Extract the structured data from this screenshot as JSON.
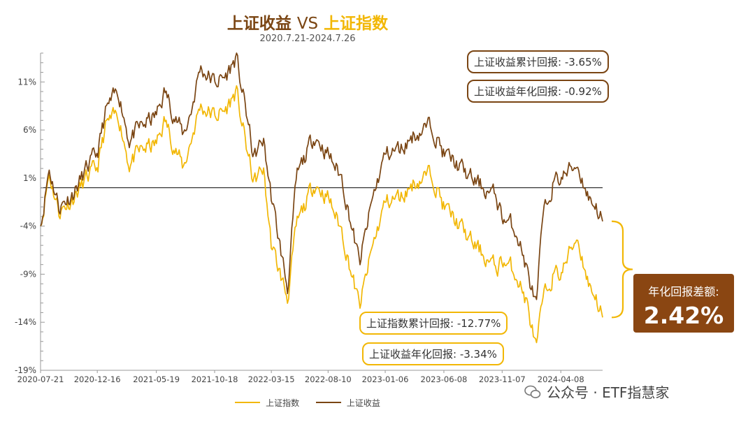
{
  "header": {
    "title_left": "上证收益",
    "title_vs": "VS",
    "title_right": "上证指数",
    "subtitle": "2020.7.21-2024.7.26"
  },
  "annotations": {
    "income_cum": "上证收益累计回报: -3.65%",
    "income_ann_top": "上证收益年化回报: -0.92%",
    "index_cum": "上证指数累计回报: -12.77%",
    "index_ann": "上证收益年化回报: -3.34%",
    "diff_label": "年化回报差额:",
    "diff_value": "2.42%"
  },
  "watermark": "公众号 · ETF指慧家",
  "colors": {
    "index": "#f2b705",
    "income": "#7a4513",
    "accent_box": "#8a4612"
  },
  "chart_data": {
    "type": "line",
    "x_tick_labels": [
      "2020-07-21",
      "2020-12-16",
      "2021-05-19",
      "2021-10-18",
      "2022-03-15",
      "2022-08-10",
      "2023-01-06",
      "2023-06-08",
      "2023-11-07",
      "2024-04-08"
    ],
    "y_tick_labels": [
      "11%",
      "6%",
      "1%",
      "-4%",
      "-9%",
      "-14%",
      "-19%"
    ],
    "ylim": [
      -19,
      14
    ],
    "baseline": 0,
    "grid": false,
    "legend_position": "bottom",
    "x_start": "2020-07-21",
    "x_end": "2024-07-26",
    "series": [
      {
        "name": "上证指数",
        "x": [
          "2020-07-21",
          "2020-08-12",
          "2020-09-08",
          "2020-10-15",
          "2020-11-20",
          "2020-12-16",
          "2021-01-08",
          "2021-02-10",
          "2021-03-09",
          "2021-04-15",
          "2021-05-19",
          "2021-06-10",
          "2021-07-28",
          "2021-08-18",
          "2021-09-10",
          "2021-10-18",
          "2021-11-15",
          "2021-12-13",
          "2022-01-10",
          "2022-01-28",
          "2022-02-22",
          "2022-03-15",
          "2022-04-26",
          "2022-05-20",
          "2022-07-05",
          "2022-08-10",
          "2022-09-15",
          "2022-10-31",
          "2022-12-05",
          "2023-01-06",
          "2023-02-15",
          "2023-03-20",
          "2023-05-09",
          "2023-06-08",
          "2023-07-10",
          "2023-08-15",
          "2023-09-20",
          "2023-10-23",
          "2023-11-07",
          "2023-12-15",
          "2024-01-10",
          "2024-02-05",
          "2024-02-20",
          "2024-03-18",
          "2024-04-08",
          "2024-05-20",
          "2024-06-20",
          "2024-07-10",
          "2024-07-26"
        ],
        "y": [
          -4.0,
          1.5,
          -2.5,
          -1.0,
          1.0,
          2.0,
          6.5,
          7.5,
          2.5,
          4.0,
          4.5,
          7.0,
          2.0,
          5.0,
          8.5,
          7.5,
          8.0,
          10.0,
          4.0,
          0.5,
          2.0,
          -6.0,
          -11.5,
          -4.0,
          0.5,
          -1.0,
          -4.5,
          -12.5,
          -6.0,
          -1.5,
          -1.0,
          0.5,
          1.5,
          -2.0,
          -3.5,
          -5.5,
          -7.0,
          -8.5,
          -7.5,
          -9.0,
          -12.0,
          -17.0,
          -12.0,
          -9.0,
          -9.0,
          -5.0,
          -10.0,
          -11.5,
          -13.5
        ]
      },
      {
        "name": "上证收益",
        "x": [
          "2020-07-21",
          "2020-08-12",
          "2020-09-08",
          "2020-10-15",
          "2020-11-20",
          "2020-12-16",
          "2021-01-08",
          "2021-02-10",
          "2021-03-09",
          "2021-04-15",
          "2021-05-19",
          "2021-06-10",
          "2021-07-28",
          "2021-08-18",
          "2021-09-10",
          "2021-10-18",
          "2021-11-15",
          "2021-12-13",
          "2022-01-10",
          "2022-01-28",
          "2022-02-22",
          "2022-03-15",
          "2022-04-26",
          "2022-05-20",
          "2022-07-05",
          "2022-08-10",
          "2022-09-15",
          "2022-10-31",
          "2022-12-05",
          "2023-01-06",
          "2023-02-15",
          "2023-03-20",
          "2023-05-09",
          "2023-06-08",
          "2023-07-10",
          "2023-08-15",
          "2023-09-20",
          "2023-10-23",
          "2023-11-07",
          "2023-12-15",
          "2024-01-10",
          "2024-02-05",
          "2024-02-20",
          "2024-03-18",
          "2024-04-08",
          "2024-05-20",
          "2024-06-20",
          "2024-07-10",
          "2024-07-26"
        ],
        "y": [
          -4.0,
          2.0,
          -2.0,
          -0.5,
          2.0,
          3.5,
          8.0,
          10.0,
          5.0,
          6.5,
          7.5,
          10.0,
          5.5,
          8.0,
          12.5,
          11.0,
          11.5,
          13.5,
          7.5,
          3.0,
          5.0,
          -1.0,
          -10.5,
          1.0,
          5.5,
          3.5,
          1.0,
          -8.0,
          -1.0,
          3.5,
          4.0,
          5.5,
          6.5,
          3.5,
          2.5,
          1.0,
          0.0,
          -1.0,
          -3.0,
          -4.5,
          -8.5,
          -12.5,
          -3.5,
          0.5,
          1.0,
          2.5,
          -1.0,
          -2.0,
          -3.5
        ]
      }
    ]
  }
}
